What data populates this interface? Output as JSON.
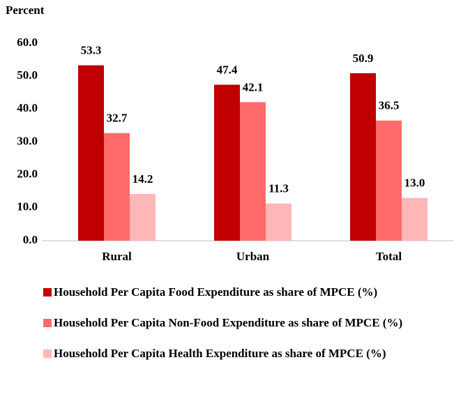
{
  "chart_data": {
    "type": "bar",
    "y_label": "Percent",
    "categories": [
      "Rural",
      "Urban",
      "Total"
    ],
    "series": [
      {
        "name": "Household Per Capita Food Expenditure as share of MPCE (%)",
        "color": "#c00000",
        "values": [
          53.3,
          47.4,
          50.9
        ],
        "value_labels": [
          "53.3",
          "47.4",
          "50.9"
        ]
      },
      {
        "name": "Household Per Capita Non-Food Expenditure as share of MPCE (%)",
        "color": "#ff6b6b",
        "values": [
          32.7,
          42.1,
          36.5
        ],
        "value_labels": [
          "32.7",
          "42.1",
          "36.5"
        ]
      },
      {
        "name": "Household Per Capita Health Expenditure as share of MPCE (%)",
        "color": "#ffb7b7",
        "values": [
          14.2,
          11.3,
          13.0
        ],
        "value_labels": [
          "14.2",
          "11.3",
          "13.0"
        ]
      }
    ],
    "ylim": [
      0,
      60
    ],
    "yticks": [
      {
        "value": 0,
        "label": "0.0"
      },
      {
        "value": 10,
        "label": "10.0"
      },
      {
        "value": 20,
        "label": "20.0"
      },
      {
        "value": 30,
        "label": "30.0"
      },
      {
        "value": 40,
        "label": "40.0"
      },
      {
        "value": 50,
        "label": "50.0"
      },
      {
        "value": 60,
        "label": "60.0"
      }
    ],
    "grid": false,
    "legend": "bottom"
  }
}
